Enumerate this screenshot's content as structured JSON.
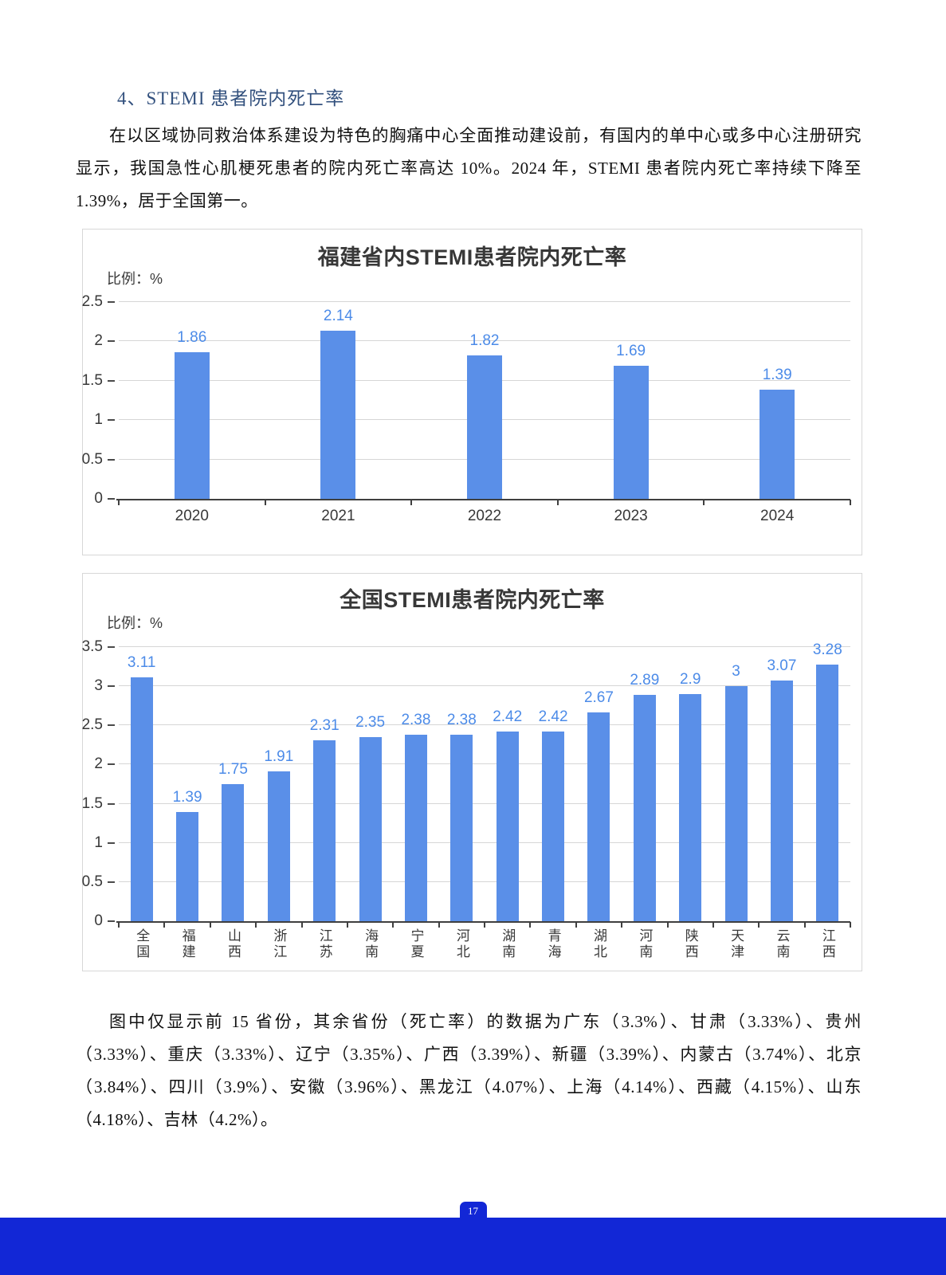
{
  "page": {
    "heading": "4、STEMI 患者院内死亡率",
    "paragraph1": "在以区域协同救治体系建设为特色的胸痛中心全面推动建设前，有国内的单中心或多中心注册研究显示，我国急性心肌梗死患者的院内死亡率高达 10%。2024 年，STEMI 患者院内死亡率持续下降至 1.39%，居于全国第一。",
    "paragraph2": "图中仅显示前 15 省份，其余省份（死亡率）的数据为广东（3.3%）、甘肃（3.33%）、贵州（3.33%）、重庆（3.33%）、辽宁（3.35%）、广西（3.39%）、新疆（3.39%）、内蒙古（3.74%）、北京（3.84%）、四川（3.9%）、安徽（3.96%）、黑龙江（4.07%）、上海（4.14%）、西藏（4.15%）、山东（4.18%）、吉林（4.2%）。",
    "page_number": "17"
  },
  "colors": {
    "heading_blue": "#33517e",
    "bar_blue": "#5a8fe8",
    "value_label_blue": "#4c8be8",
    "footer_blue": "#1227d6",
    "gridline_gray": "#d6d6d6"
  },
  "chart_data": [
    {
      "type": "bar",
      "title": "福建省内STEMI患者院内死亡率",
      "ylabel": "比例：%",
      "xlabel": "",
      "categories": [
        "2020",
        "2021",
        "2022",
        "2023",
        "2024"
      ],
      "values": [
        1.86,
        2.14,
        1.82,
        1.69,
        1.39
      ],
      "ylim": [
        0,
        2.5
      ],
      "ytick_step": 0.5,
      "grid": true,
      "legend": "none",
      "xlabel_orientation": "horizontal"
    },
    {
      "type": "bar",
      "title": "全国STEMI患者院内死亡率",
      "ylabel": "比例：%",
      "xlabel": "",
      "categories": [
        "全国",
        "福建",
        "山西",
        "浙江",
        "江苏",
        "海南",
        "宁夏",
        "河北",
        "湖南",
        "青海",
        "湖北",
        "河南",
        "陕西",
        "天津",
        "云南",
        "江西"
      ],
      "values": [
        3.11,
        1.39,
        1.75,
        1.91,
        2.31,
        2.35,
        2.38,
        2.38,
        2.42,
        2.42,
        2.67,
        2.89,
        2.9,
        3,
        3.07,
        3.28
      ],
      "ylim": [
        0,
        3.5
      ],
      "ytick_step": 0.5,
      "grid": true,
      "legend": "none",
      "xlabel_orientation": "vertical"
    }
  ]
}
